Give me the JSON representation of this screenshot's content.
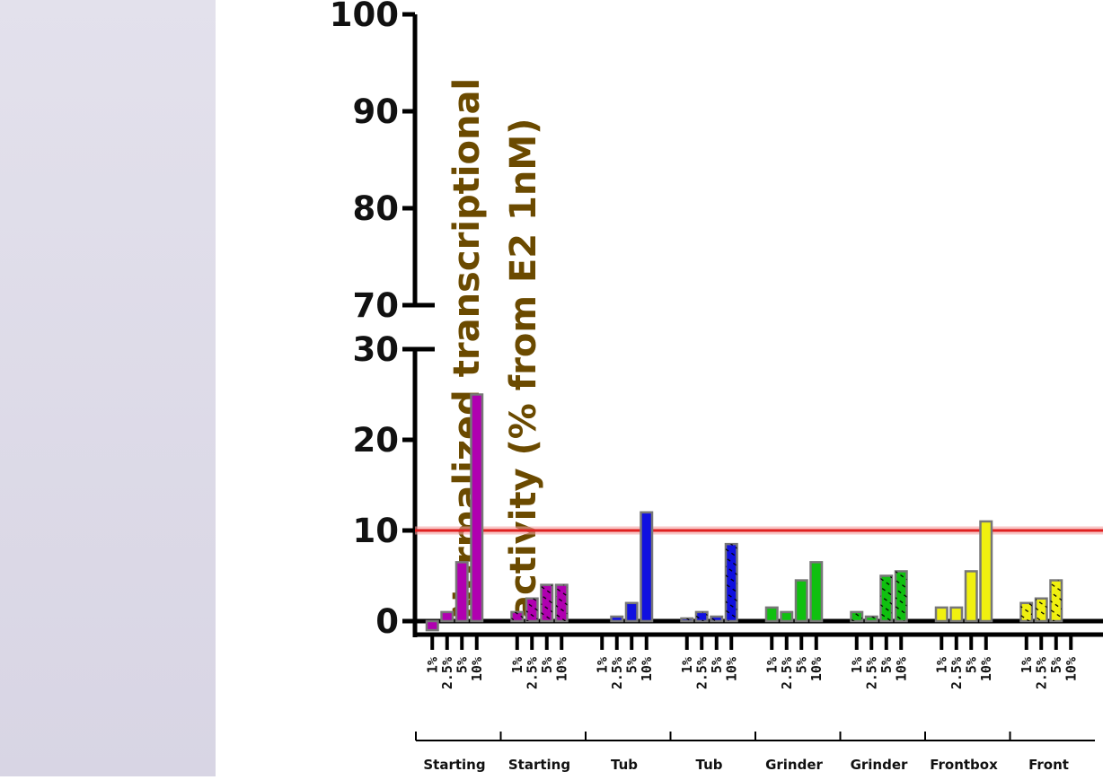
{
  "chart_data": {
    "type": "bar",
    "ylabel_lines": [
      "Normalized transcriptional",
      "activity (% from E2 1nM)"
    ],
    "y_axis_break": {
      "lower_range": [
        0,
        30
      ],
      "upper_range": [
        70,
        100
      ]
    },
    "y_ticks_lower": [
      "0",
      "10",
      "20",
      "30"
    ],
    "y_ticks_upper": [
      "70",
      "80",
      "90",
      "100"
    ],
    "reference_line": {
      "value": 10,
      "color": "#e02020"
    },
    "concentrations": [
      "1%",
      "2.5%",
      "5%",
      "10%"
    ],
    "groups": [
      {
        "name": "Starting",
        "color": "#b000b0",
        "hatched": false,
        "values": [
          -1,
          1,
          6.5,
          25
        ]
      },
      {
        "name": "Starting",
        "color": "#b000b0",
        "hatched": true,
        "values": [
          1,
          2.5,
          4,
          4
        ]
      },
      {
        "name": "Tub",
        "color": "#1010e0",
        "hatched": false,
        "values": [
          0,
          0.5,
          2,
          12
        ]
      },
      {
        "name": "Tub",
        "color": "#1010e0",
        "hatched": true,
        "values": [
          0.3,
          1,
          0.5,
          8.5
        ]
      },
      {
        "name": "Grinder",
        "color": "#10c010",
        "hatched": false,
        "values": [
          1.5,
          1,
          4.5,
          6.5
        ]
      },
      {
        "name": "Grinder",
        "color": "#10c010",
        "hatched": true,
        "values": [
          1,
          0.5,
          5,
          5.5
        ]
      },
      {
        "name": "Frontbox",
        "color": "#f0f010",
        "hatched": false,
        "values": [
          1.5,
          1.5,
          5.5,
          11
        ]
      },
      {
        "name": "Front",
        "color": "#f0f010",
        "hatched": true,
        "values": [
          2,
          2.5,
          4.5,
          0
        ]
      }
    ]
  }
}
